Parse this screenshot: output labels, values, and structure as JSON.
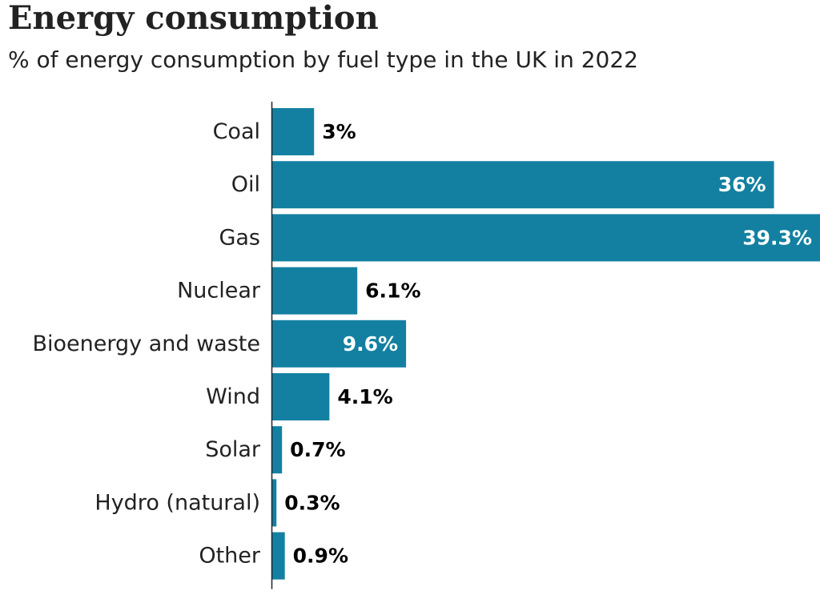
{
  "chart_data": {
    "type": "bar",
    "orientation": "horizontal",
    "title": "Energy consumption",
    "subtitle": "% of energy consumption by fuel type in the UK in 2022",
    "categories": [
      "Coal",
      "Oil",
      "Gas",
      "Nuclear",
      "Bioenergy and waste",
      "Wind",
      "Solar",
      "Hydro (natural)",
      "Other"
    ],
    "values": [
      3,
      36,
      39.3,
      6.1,
      9.6,
      4.1,
      0.7,
      0.3,
      0.9
    ],
    "labels": [
      "3%",
      "36%",
      "39.3%",
      "6.1%",
      "9.6%",
      "4.1%",
      "0.7%",
      "0.3%",
      "0.9%"
    ],
    "xlabel": "",
    "ylabel": "",
    "xlim": [
      0,
      39.3
    ],
    "grid": false,
    "legend": "none",
    "colors": {
      "bar": "#1380a1",
      "axis": "#222222",
      "text": "#222222",
      "label_inside": "#ffffff",
      "label_outside": "#000000"
    }
  }
}
